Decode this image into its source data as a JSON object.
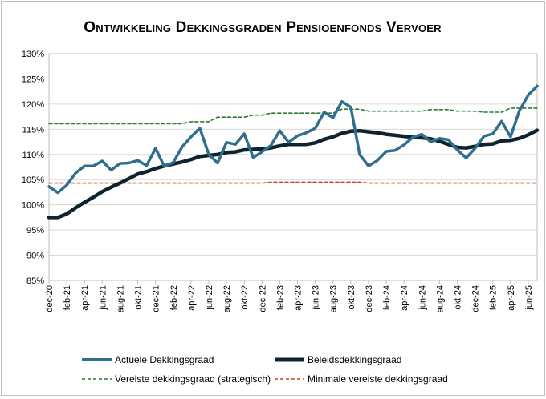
{
  "chart_data": {
    "type": "line",
    "title": "Ontwikkeling Dekkingsgraden Pensioenfonds Vervoer",
    "xlabel": "",
    "ylabel": "",
    "ylim": [
      85,
      130
    ],
    "y_ticks": [
      "85%",
      "90%",
      "95%",
      "100%",
      "105%",
      "110%",
      "115%",
      "120%",
      "125%",
      "130%"
    ],
    "grid": "horizontal",
    "legend_position": "bottom",
    "x": [
      "dec-20",
      "jan-21",
      "feb-21",
      "mrt-21",
      "apr-21",
      "mei-21",
      "jun-21",
      "jul-21",
      "aug-21",
      "sep-21",
      "okt-21",
      "nov-21",
      "dec-21",
      "jan-22",
      "feb-22",
      "mrt-22",
      "apr-22",
      "mei-22",
      "jun-22",
      "jul-22",
      "aug-22",
      "sep-22",
      "okt-22",
      "nov-22",
      "dec-22",
      "jan-23",
      "feb-23",
      "mrt-23",
      "apr-23",
      "mei-23",
      "jun-23",
      "jul-23",
      "aug-23",
      "sep-23",
      "okt-23",
      "nov-23",
      "dec-23",
      "jan-24",
      "feb-24",
      "mrt-24",
      "apr-24",
      "mei-24",
      "jun-24",
      "jul-24",
      "aug-24",
      "sep-24",
      "okt-24",
      "nov-24",
      "dec-24",
      "jan-25",
      "feb-25",
      "mrt-25",
      "apr-25",
      "mei-25",
      "jun-25",
      "jul-25"
    ],
    "x_tick_labels": [
      "dec-20",
      "feb-21",
      "apr-21",
      "jun-21",
      "aug-21",
      "okt-21",
      "dec-21",
      "feb-22",
      "apr-22",
      "jun-22",
      "aug-22",
      "okt-22",
      "dec-22",
      "feb-23",
      "apr-23",
      "jun-23",
      "aug-23",
      "okt-23",
      "dec-23",
      "feb-24",
      "apr-24",
      "jun-24",
      "aug-24",
      "okt-24",
      "dec-24",
      "feb-25",
      "apr-25",
      "jun-25"
    ],
    "series": [
      {
        "name": "Actuele Dekkingsgraad",
        "color": "#2e6f8e",
        "style": "solid",
        "values": [
          103.6,
          102.4,
          103.9,
          106.3,
          107.7,
          107.7,
          108.7,
          106.9,
          108.2,
          108.3,
          108.8,
          107.8,
          111.2,
          107.6,
          108.4,
          111.5,
          113.5,
          115.2,
          110.0,
          108.3,
          112.4,
          112.0,
          114.1,
          109.4,
          110.5,
          111.8,
          114.7,
          112.4,
          113.7,
          114.3,
          115.2,
          118.4,
          117.3,
          120.5,
          119.4,
          110.0,
          107.7,
          108.8,
          110.6,
          110.8,
          111.9,
          113.4,
          114.0,
          112.5,
          113.2,
          112.9,
          110.9,
          109.3,
          111.2,
          113.6,
          114.1,
          116.6,
          113.5,
          118.7,
          121.8,
          123.6
        ]
      },
      {
        "name": "Beleidsdekkingsgraad",
        "color": "#0d2430",
        "style": "solid-thick",
        "values": [
          97.5,
          97.5,
          98.2,
          99.4,
          100.5,
          101.5,
          102.6,
          103.5,
          104.3,
          105.2,
          106.1,
          106.6,
          107.2,
          107.7,
          108.1,
          108.5,
          109.0,
          109.6,
          109.8,
          110.0,
          110.4,
          110.5,
          110.9,
          111.0,
          111.1,
          111.3,
          111.7,
          112.0,
          112.0,
          112.0,
          112.3,
          113.0,
          113.5,
          114.2,
          114.6,
          114.7,
          114.5,
          114.3,
          114.0,
          113.8,
          113.6,
          113.4,
          113.3,
          113.1,
          112.6,
          112.0,
          111.4,
          111.3,
          111.6,
          112.0,
          112.1,
          112.7,
          112.8,
          113.2,
          113.9,
          114.8
        ]
      },
      {
        "name": "Vereiste dekkingsgraad (strategisch)",
        "color": "#2f7a2f",
        "style": "dashed",
        "values": [
          116.1,
          116.1,
          116.1,
          116.1,
          116.1,
          116.1,
          116.1,
          116.1,
          116.1,
          116.1,
          116.1,
          116.1,
          116.1,
          116.1,
          116.1,
          116.1,
          116.5,
          116.5,
          116.5,
          117.4,
          117.4,
          117.4,
          117.4,
          117.8,
          117.8,
          118.2,
          118.2,
          118.2,
          118.2,
          118.2,
          118.2,
          118.2,
          118.2,
          119.0,
          119.0,
          119.0,
          118.6,
          118.6,
          118.6,
          118.6,
          118.6,
          118.6,
          118.6,
          118.9,
          118.9,
          118.9,
          118.6,
          118.6,
          118.6,
          118.4,
          118.4,
          118.4,
          119.2,
          119.2,
          119.2,
          119.2
        ]
      },
      {
        "name": "Minimale vereiste dekkingsgraad",
        "color": "#c8451f",
        "style": "dashed",
        "values": [
          104.3,
          104.3,
          104.3,
          104.3,
          104.3,
          104.3,
          104.3,
          104.3,
          104.3,
          104.3,
          104.3,
          104.3,
          104.3,
          104.3,
          104.3,
          104.3,
          104.3,
          104.3,
          104.3,
          104.3,
          104.3,
          104.3,
          104.3,
          104.3,
          104.3,
          104.5,
          104.5,
          104.5,
          104.5,
          104.5,
          104.5,
          104.5,
          104.5,
          104.5,
          104.5,
          104.5,
          104.3,
          104.3,
          104.3,
          104.3,
          104.3,
          104.3,
          104.3,
          104.3,
          104.3,
          104.3,
          104.3,
          104.3,
          104.3,
          104.3,
          104.3,
          104.3,
          104.3,
          104.3,
          104.3,
          104.3
        ]
      }
    ]
  }
}
